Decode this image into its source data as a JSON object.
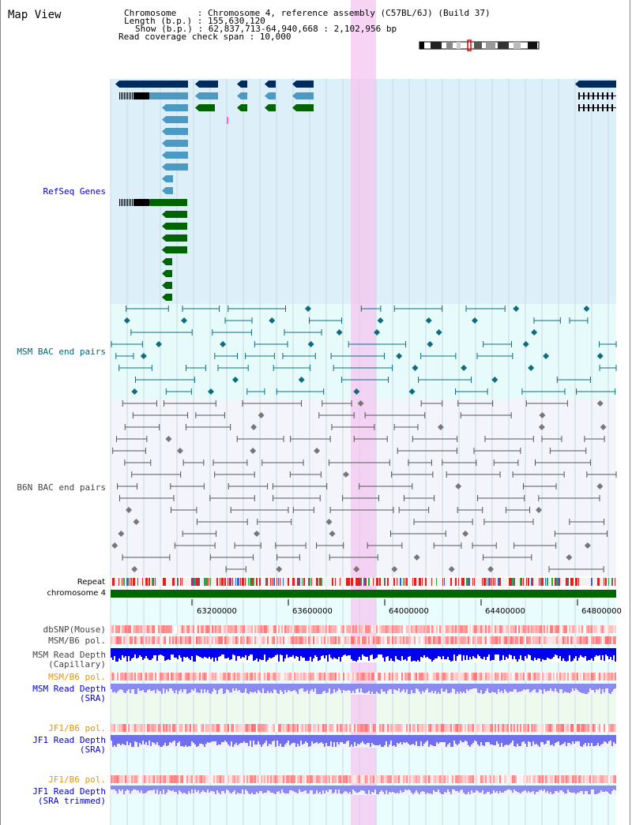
{
  "header": {
    "title": "Map View",
    "lines": [
      "Chromosome    : Chromosome 4, reference assembly (C57BL/6J) (Build 37)",
      "Length (b.p.) : 155,630,120",
      "Show (b.p.) : 62,837,713-64,940,668 : 2,102,956 bp",
      "Read coverage check span : 10,000"
    ]
  },
  "tracks": {
    "refseq_label": "RefSeq Genes",
    "msm_bac_label": "MSM BAC end pairs",
    "b6n_bac_label": "B6N BAC end pairs",
    "repeat_label": "Repeat",
    "chromosome_label": "chromosome 4",
    "dbsnp_label": "dbSNP(Mouse)",
    "msm_b6_pol_label": "MSM/B6 pol.",
    "msm_read_depth_cap_label1": "MSM Read Depth",
    "msm_read_depth_cap_label2": "(Capillary)",
    "msm_b6_pol_sra_label": "MSM/B6 pol.",
    "msm_read_depth_sra_label1": "MSM Read Depth",
    "msm_read_depth_sra_label2": "(SRA)",
    "jf1_b6_pol_label": "JF1/B6 pol.",
    "jf1_read_depth_sra_label1": "JF1 Read Depth",
    "jf1_read_depth_sra_label2": "(SRA)",
    "jf1_b6_pol2_label": "JF1/B6 pol.",
    "jf1_read_depth_trim_label1": "JF1 Read Depth",
    "jf1_read_depth_trim_label2": "(SRA trimmed)"
  },
  "axis": {
    "ticks": [
      "63200000",
      "63600000",
      "64000000",
      "64400000",
      "64800000"
    ]
  },
  "colors": {
    "refseq_bg": "#ddf0fa",
    "msm_bg": "#e8fbfb",
    "b6n_bg": "#f4f5fa",
    "depth_bg": "#eafdfd",
    "highlight": "#f4c6f0",
    "label_blue": "#0000cc",
    "label_teal": "#006677",
    "label_gray": "#444444",
    "label_orange": "#e69500",
    "gene_dark": "#002b5c",
    "gene_light": "#4a9ac4",
    "gene_green": "#006400",
    "msm_line": "#0d6c80",
    "b6n_line": "#555555",
    "chrom_green": "#006600"
  }
}
